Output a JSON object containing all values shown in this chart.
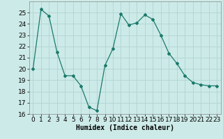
{
  "x": [
    0,
    1,
    2,
    3,
    4,
    5,
    6,
    7,
    8,
    9,
    10,
    11,
    12,
    13,
    14,
    15,
    16,
    17,
    18,
    19,
    20,
    21,
    22,
    23
  ],
  "y": [
    20.0,
    25.3,
    24.7,
    21.5,
    19.4,
    19.4,
    18.5,
    16.6,
    16.3,
    20.3,
    21.8,
    24.9,
    23.9,
    24.1,
    24.8,
    24.4,
    23.0,
    21.4,
    20.5,
    19.4,
    18.8,
    18.6,
    18.5,
    18.5
  ],
  "line_color": "#1a7a6a",
  "marker": "D",
  "marker_size": 2,
  "bg_color": "#cceae8",
  "grid_color": "#b0d4d2",
  "xlabel": "Humidex (Indice chaleur)",
  "ylim": [
    16,
    26
  ],
  "xlim": [
    -0.5,
    23.5
  ],
  "yticks": [
    16,
    17,
    18,
    19,
    20,
    21,
    22,
    23,
    24,
    25
  ],
  "xticks": [
    0,
    1,
    2,
    3,
    4,
    5,
    6,
    7,
    8,
    9,
    10,
    11,
    12,
    13,
    14,
    15,
    16,
    17,
    18,
    19,
    20,
    21,
    22,
    23
  ],
  "xlabel_fontsize": 7,
  "tick_fontsize": 6.5
}
